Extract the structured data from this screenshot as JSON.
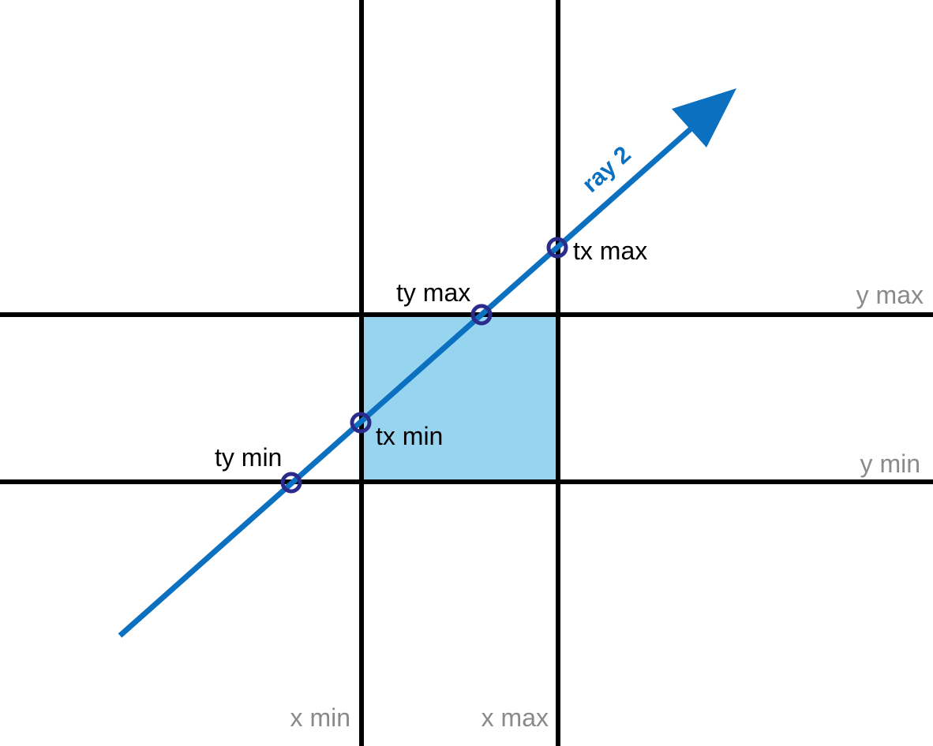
{
  "colors": {
    "ray": "#0a70bf",
    "box_fill": "#97d4ef",
    "grid_lines": "#000000",
    "intersection_points": "#2b2b8c",
    "axis_labels": "#8a8a8a"
  },
  "ray": {
    "label": "ray 2"
  },
  "grid_labels": {
    "x_min": "x min",
    "x_max": "x max",
    "y_min": "y min",
    "y_max": "y max"
  },
  "points": {
    "ty_min": "ty min",
    "tx_min": "tx min",
    "ty_max": "ty max",
    "tx_max": "tx max"
  }
}
